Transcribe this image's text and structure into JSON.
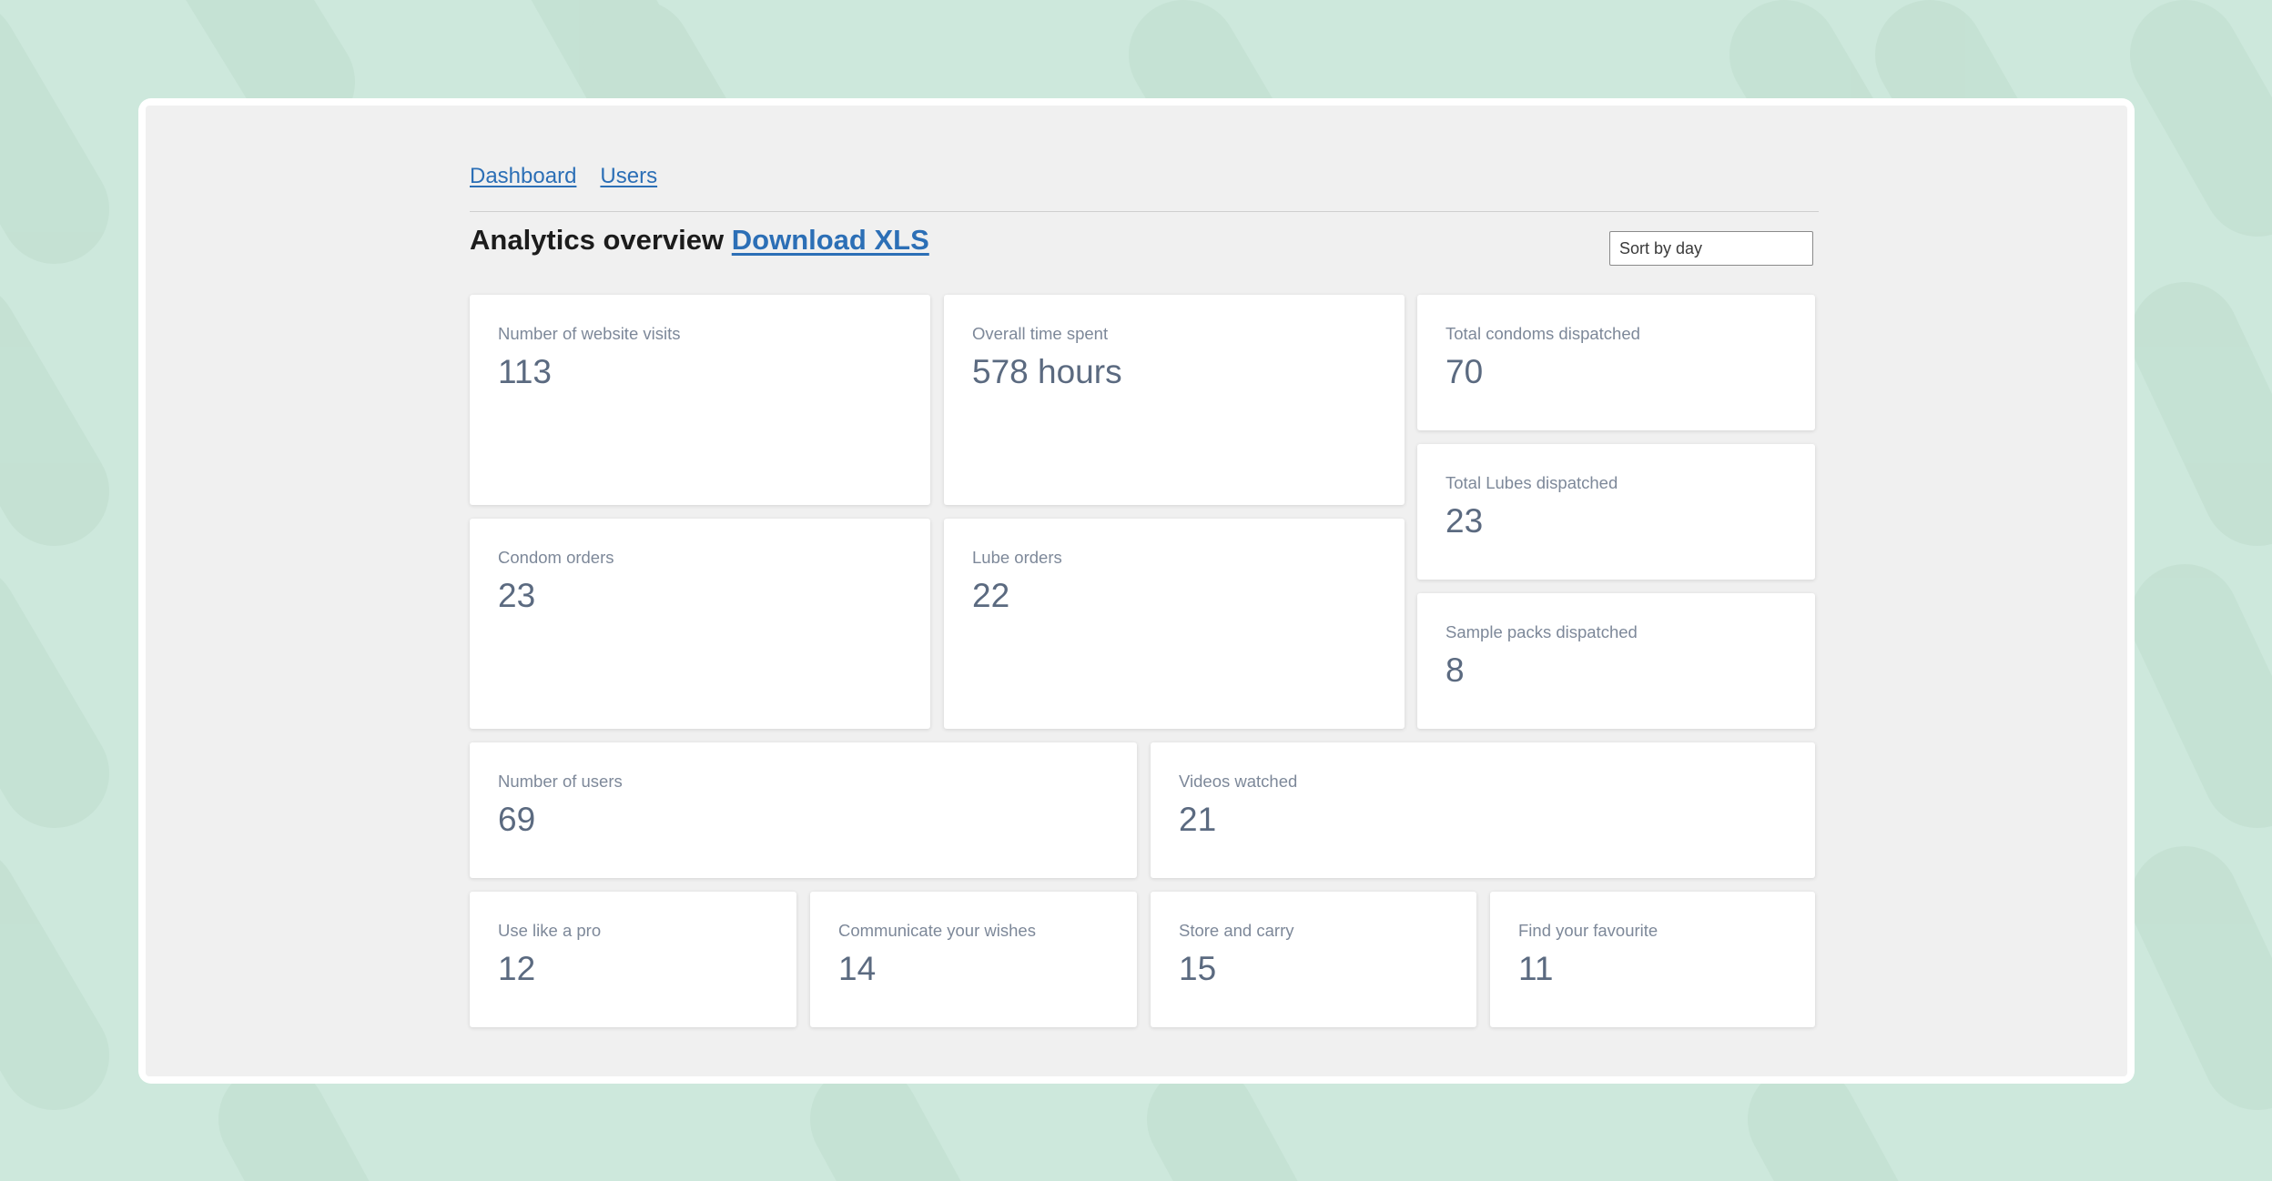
{
  "nav": {
    "dashboard": "Dashboard",
    "users": "Users"
  },
  "header": {
    "title": "Analytics overview",
    "download_label": "Download XLS"
  },
  "sort": {
    "selected": "Sort by day"
  },
  "stats": {
    "website_visits": {
      "label": "Number of website visits",
      "value": "113"
    },
    "time_spent": {
      "label": "Overall time spent",
      "value": "578 hours"
    },
    "condoms_dispatched": {
      "label": "Total condoms dispatched",
      "value": "70"
    },
    "lubes_dispatched": {
      "label": "Total Lubes dispatched",
      "value": "23"
    },
    "condom_orders": {
      "label": "Condom orders",
      "value": "23"
    },
    "lube_orders": {
      "label": "Lube orders",
      "value": "22"
    },
    "sample_packs": {
      "label": "Sample packs dispatched",
      "value": "8"
    },
    "users": {
      "label": "Number of users",
      "value": "69"
    },
    "videos_watched": {
      "label": "Videos watched",
      "value": "21"
    },
    "use_like_pro": {
      "label": "Use like a pro",
      "value": "12"
    },
    "communicate_wishes": {
      "label": "Communicate your wishes",
      "value": "14"
    },
    "store_carry": {
      "label": "Store and carry",
      "value": "15"
    },
    "find_favourite": {
      "label": "Find your favourite",
      "value": "11"
    }
  },
  "colors": {
    "background": "#cde8dc",
    "pattern": "#b9d9ca",
    "link": "#2c6fb6",
    "card_label": "#7d8899",
    "card_value": "#5b6a80"
  }
}
